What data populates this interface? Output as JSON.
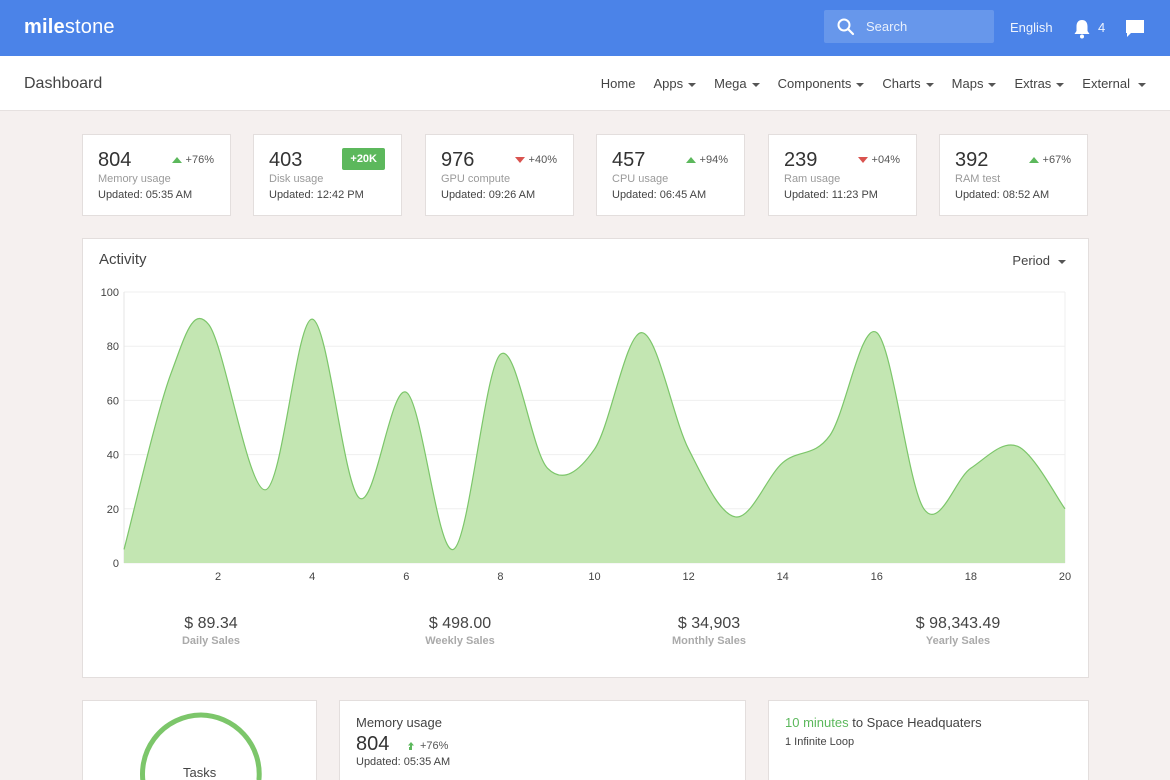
{
  "brand": {
    "bold": "mile",
    "rest": "stone"
  },
  "search": {
    "placeholder": "Search"
  },
  "topbar": {
    "language": "English",
    "notifications": "4"
  },
  "header": {
    "title": "Dashboard",
    "nav": [
      "Home",
      "Apps",
      "Mega",
      "Components",
      "Charts",
      "Maps",
      "Extras",
      "External"
    ]
  },
  "stats": [
    {
      "value": "804",
      "label": "Memory usage",
      "updated": "Updated: 05:35 AM",
      "trend": "+76%",
      "direction": "up"
    },
    {
      "value": "403",
      "label": "Disk usage",
      "updated": "Updated: 12:42 PM",
      "badge": "+20K"
    },
    {
      "value": "976",
      "label": "GPU compute",
      "updated": "Updated: 09:26 AM",
      "trend": "+40%",
      "direction": "down"
    },
    {
      "value": "457",
      "label": "CPU usage",
      "updated": "Updated: 06:45 AM",
      "trend": "+94%",
      "direction": "up"
    },
    {
      "value": "239",
      "label": "Ram usage",
      "updated": "Updated: 11:23 PM",
      "trend": "+04%",
      "direction": "down"
    },
    {
      "value": "392",
      "label": "RAM test",
      "updated": "Updated: 08:52 AM",
      "trend": "+67%",
      "direction": "up"
    }
  ],
  "activity": {
    "title": "Activity",
    "period_label": "Period",
    "sales": [
      {
        "amount": "$ 89.34",
        "label": "Daily Sales"
      },
      {
        "amount": "$ 498.00",
        "label": "Weekly Sales"
      },
      {
        "amount": "$ 34,903",
        "label": "Monthly Sales"
      },
      {
        "amount": "$ 98,343.49",
        "label": "Yearly Sales"
      }
    ]
  },
  "chart_data": {
    "type": "area",
    "x": [
      0,
      1,
      1.8,
      3,
      4,
      5,
      6,
      7,
      8,
      9,
      10,
      11,
      12,
      13,
      14,
      15,
      16,
      17,
      18,
      19,
      20
    ],
    "values": [
      5,
      70,
      88,
      27,
      90,
      24,
      63,
      5,
      77,
      35,
      42,
      85,
      42,
      17,
      37,
      47,
      85,
      20,
      35,
      43,
      20
    ],
    "xticks": [
      2,
      4,
      6,
      8,
      10,
      12,
      14,
      16,
      18,
      20
    ],
    "yticks": [
      0,
      20,
      40,
      60,
      80,
      100
    ],
    "xlim": [
      0,
      20
    ],
    "ylim": [
      0,
      100
    ],
    "grid": true,
    "color": "#7cc66a",
    "fill": "#c3e6b2"
  },
  "bottom": {
    "tasks_label": "Tasks",
    "memory": {
      "title": "Memory usage",
      "value": "804",
      "trend": "+76%",
      "updated": "Updated:  05:35 AM"
    },
    "geo": {
      "highlight": "10 minutes",
      "rest": " to Space Headquaters",
      "address": "1 Infinite Loop"
    }
  },
  "colors": {
    "topbar": "#4b83e8",
    "positive": "#5cb85c",
    "negative": "#d9534f",
    "background": "#f5f0ef"
  }
}
